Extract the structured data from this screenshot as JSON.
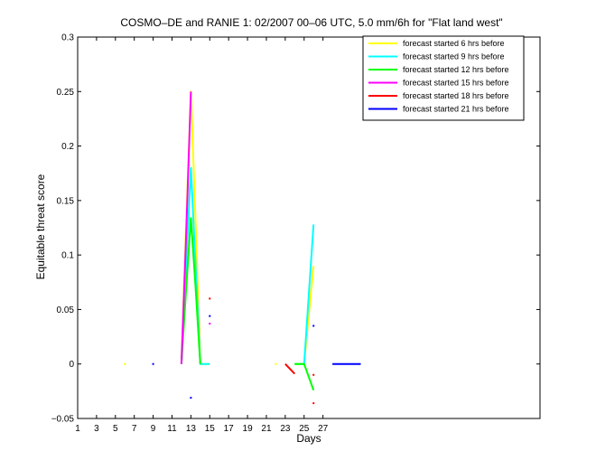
{
  "chart_data": {
    "type": "line",
    "title": "COSMO–DE and RANIE 1: 02/2007 00–06 UTC, 5.0 mm/6h for \"Flat land west\"",
    "xlabel": "Days",
    "ylabel": "Equitable threat score",
    "xlim": [
      1,
      50
    ],
    "ylim": [
      -0.05,
      0.3
    ],
    "xticks": [
      1,
      3,
      5,
      7,
      9,
      11,
      13,
      15,
      17,
      19,
      21,
      23,
      25,
      27
    ],
    "xtick_labels": [
      "1",
      "3",
      "5",
      "7",
      "9",
      "11",
      "13",
      "15",
      "17",
      "19",
      "21",
      "23",
      "25",
      "27"
    ],
    "yticks": [
      -0.05,
      0,
      0.05,
      0.1,
      0.15,
      0.2,
      0.25,
      0.3
    ],
    "ytick_labels": [
      "−0.05",
      "0",
      "0.05",
      "0.1",
      "0.15",
      "0.2",
      "0.25",
      "0.3"
    ],
    "grid": false,
    "legend_position": "top-right",
    "series": [
      {
        "name": "forecast started 6 hrs before",
        "color": "#ffff00",
        "lines": [
          [
            [
              12,
              0
            ],
            [
              12.5,
              0.13
            ],
            [
              13,
              0.25
            ],
            [
              13.5,
              0.13
            ],
            [
              14,
              0
            ],
            [
              15,
              0
            ]
          ],
          [
            [
              24,
              0
            ],
            [
              25,
              0
            ],
            [
              26,
              0.09
            ]
          ]
        ],
        "dots": [
          [
            6,
            0
          ],
          [
            22,
            0
          ]
        ]
      },
      {
        "name": "forecast started 9 hrs before",
        "color": "#00ffff",
        "lines": [
          [
            [
              12,
              0
            ],
            [
              13,
              0.18
            ],
            [
              14,
              0
            ],
            [
              15,
              0
            ]
          ],
          [
            [
              24,
              0
            ],
            [
              25,
              0
            ],
            [
              26,
              0.128
            ]
          ]
        ],
        "dots": []
      },
      {
        "name": "forecast started 12 hrs before",
        "color": "#00ff00",
        "lines": [
          [
            [
              12,
              0
            ],
            [
              12.5,
              0.07
            ],
            [
              13,
              0.134
            ],
            [
              13.5,
              0.07
            ],
            [
              14,
              0
            ]
          ],
          [
            [
              24,
              0
            ],
            [
              25,
              0
            ],
            [
              26,
              -0.024
            ]
          ]
        ],
        "dots": []
      },
      {
        "name": "forecast started 15 hrs before",
        "color": "#ff00ff",
        "lines": [
          [
            [
              12,
              0
            ],
            [
              12.5,
              0.12
            ],
            [
              13,
              0.25
            ]
          ]
        ],
        "dots": [
          [
            15,
            0.037
          ]
        ]
      },
      {
        "name": "forecast started 18 hrs before",
        "color": "#ff0000",
        "lines": [
          [
            [
              23,
              0
            ],
            [
              24,
              -0.009
            ]
          ]
        ],
        "dots": [
          [
            15,
            0.06
          ],
          [
            26,
            -0.01
          ],
          [
            26,
            -0.036
          ]
        ]
      },
      {
        "name": "forecast started 21 hrs before",
        "color": "#0000ff",
        "lines": [
          [
            [
              28,
              0
            ],
            [
              31,
              0
            ]
          ]
        ],
        "dots": [
          [
            9,
            0
          ],
          [
            13,
            -0.031
          ],
          [
            15,
            0.044
          ],
          [
            26,
            0.035
          ]
        ]
      }
    ]
  }
}
